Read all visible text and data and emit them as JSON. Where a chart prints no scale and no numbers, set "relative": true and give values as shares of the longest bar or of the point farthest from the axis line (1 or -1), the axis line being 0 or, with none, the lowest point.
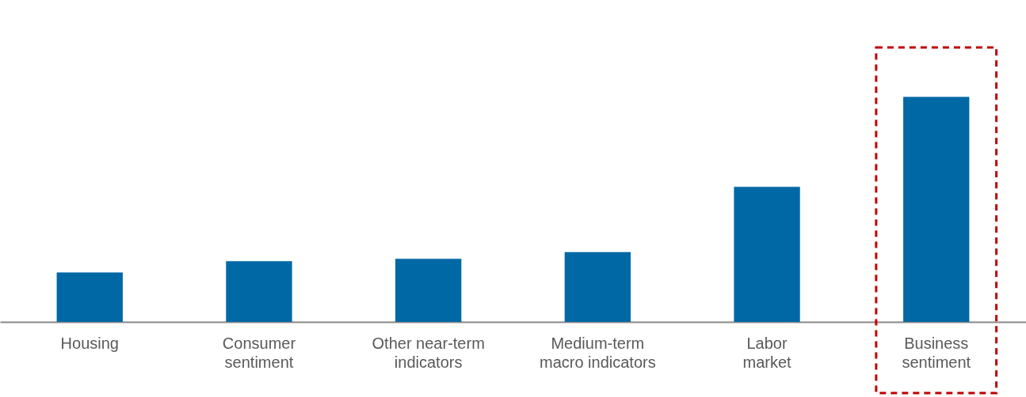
{
  "chart_data": {
    "type": "bar",
    "relative": true,
    "categories": [
      "Housing",
      "Consumer sentiment",
      "Other near-term indicators",
      "Medium-term macro indicators",
      "Labor market",
      "Business sentiment"
    ],
    "values": [
      0.22,
      0.27,
      0.28,
      0.31,
      0.6,
      1
    ],
    "color": "#0068a5",
    "grid": false
  }
}
